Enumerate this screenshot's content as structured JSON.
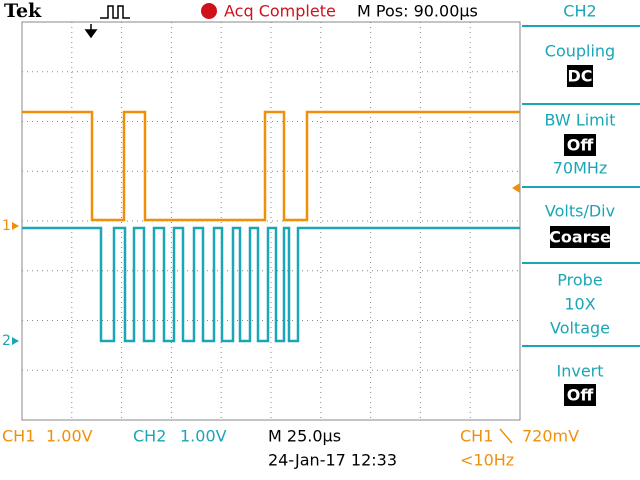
{
  "top_bar": {
    "brand": "Tek",
    "status": "Acq Complete",
    "position": "M Pos: 90.00µs"
  },
  "side_menu": {
    "channel": "CH2",
    "items": [
      {
        "label": "Coupling",
        "value": "DC"
      },
      {
        "label": "BW Limit",
        "value": "Off",
        "note": "70MHz"
      },
      {
        "label": "Volts/Div",
        "value": "Coarse"
      },
      {
        "label": "Probe",
        "value": "10X",
        "note": "Voltage"
      },
      {
        "label": "Invert",
        "value": "Off"
      }
    ]
  },
  "markers": [
    "1",
    "2"
  ],
  "status_bar": {
    "ch1": {
      "name": "CH1",
      "scale": "1.00V"
    },
    "ch2": {
      "name": "CH2",
      "scale": "1.00V"
    },
    "timebase": "M 25.0µs",
    "datetime": "24-Jan-17 12:33",
    "trigger": {
      "source": "CH1",
      "level": "720mV",
      "frequency": "<10Hz"
    }
  }
}
